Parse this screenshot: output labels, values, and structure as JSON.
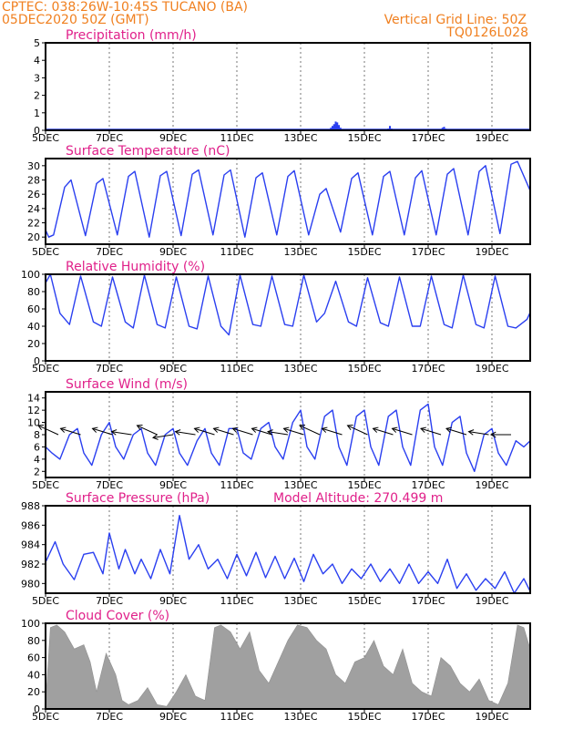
{
  "header": {
    "line1": "CPTEC:   038:26W-10:45S   TUCANO (BA)",
    "line2": "05DEC2020 50Z (GMT)",
    "right1": "Vertical Grid Line: 50Z",
    "right2": "TQ0126L028"
  },
  "colors": {
    "header": "#f08020",
    "title": "#e0208a",
    "line": "#2a3ff0",
    "cloud": "#a0a0a0",
    "arrow": "#000000"
  },
  "x_ticks": [
    "5DEC",
    "7DEC",
    "9DEC",
    "11DEC",
    "13DEC",
    "15DEC",
    "17DEC",
    "19DEC"
  ],
  "x_tick_days": [
    0,
    2,
    4,
    6,
    8,
    10,
    12,
    14
  ],
  "chart_data": [
    {
      "type": "bar",
      "title": "Precipitation (mm/h)",
      "ylim": [
        0,
        5
      ],
      "yticks": [
        0,
        1,
        2,
        3,
        4,
        5
      ],
      "x_range_days": [
        0,
        15.2
      ],
      "bars": [
        [
          8.95,
          0.15
        ],
        [
          9.0,
          0.25
        ],
        [
          9.05,
          0.35
        ],
        [
          9.1,
          0.5
        ],
        [
          9.15,
          0.45
        ],
        [
          9.2,
          0.3
        ],
        [
          9.25,
          0.15
        ],
        [
          10.75,
          0.1
        ],
        [
          10.8,
          0.25
        ],
        [
          10.85,
          0.1
        ],
        [
          12.45,
          0.15
        ],
        [
          12.5,
          0.2
        ],
        [
          12.55,
          0.1
        ]
      ],
      "baseline": 0.05
    },
    {
      "type": "line",
      "title": "Surface Temperature (nC)",
      "ylim": [
        19,
        31
      ],
      "yticks": [
        20,
        22,
        24,
        26,
        28,
        30
      ],
      "x_range_days": [
        0,
        15.2
      ],
      "x": [
        0,
        0.1,
        0.25,
        0.6,
        0.8,
        1.25,
        1.6,
        1.8,
        2.25,
        2.6,
        2.8,
        3.25,
        3.6,
        3.8,
        4.25,
        4.6,
        4.8,
        5.25,
        5.6,
        5.8,
        6.25,
        6.6,
        6.8,
        7.25,
        7.6,
        7.8,
        8.25,
        8.6,
        8.8,
        9.25,
        9.6,
        9.8,
        10.25,
        10.6,
        10.8,
        11.25,
        11.6,
        11.8,
        12.25,
        12.6,
        12.8,
        13.25,
        13.6,
        13.8,
        14.25,
        14.6,
        14.8,
        15.2
      ],
      "y": [
        21.0,
        20.0,
        20.3,
        27.0,
        28.0,
        20.2,
        27.5,
        28.2,
        20.3,
        28.5,
        29.2,
        20.0,
        28.6,
        29.2,
        20.2,
        28.8,
        29.4,
        20.3,
        28.7,
        29.4,
        20.0,
        28.3,
        29.0,
        20.3,
        28.5,
        29.3,
        20.3,
        26.0,
        26.8,
        20.7,
        28.2,
        29.0,
        20.3,
        28.5,
        29.2,
        20.3,
        28.3,
        29.3,
        20.3,
        28.8,
        29.6,
        20.3,
        29.2,
        30.0,
        20.5,
        30.2,
        30.6,
        26.5
      ]
    },
    {
      "type": "line",
      "title": "Relative Humidity (%)",
      "ylim": [
        0,
        100
      ],
      "yticks": [
        0,
        20,
        40,
        60,
        80,
        100
      ],
      "x_range_days": [
        0,
        15.2
      ],
      "x": [
        0,
        0.15,
        0.45,
        0.75,
        1.1,
        1.5,
        1.75,
        2.1,
        2.5,
        2.75,
        3.1,
        3.5,
        3.75,
        4.1,
        4.5,
        4.75,
        5.1,
        5.5,
        5.75,
        6.1,
        6.5,
        6.75,
        7.1,
        7.5,
        7.75,
        8.1,
        8.5,
        8.75,
        9.1,
        9.5,
        9.75,
        10.1,
        10.5,
        10.75,
        11.1,
        11.5,
        11.75,
        12.1,
        12.5,
        12.75,
        13.1,
        13.5,
        13.75,
        14.1,
        14.5,
        14.75,
        15.1,
        15.2
      ],
      "y": [
        90,
        100,
        55,
        42,
        98,
        45,
        40,
        97,
        45,
        38,
        99,
        42,
        38,
        97,
        40,
        37,
        98,
        40,
        30,
        99,
        42,
        40,
        98,
        42,
        40,
        99,
        45,
        55,
        92,
        45,
        40,
        96,
        44,
        40,
        97,
        40,
        40,
        98,
        42,
        38,
        99,
        42,
        38,
        98,
        40,
        38,
        48,
        56
      ]
    },
    {
      "type": "line",
      "title": "Surface Wind (m/s)",
      "ylim": [
        1,
        15
      ],
      "yticks": [
        2,
        4,
        6,
        8,
        10,
        12,
        14
      ],
      "x_range_days": [
        0,
        15.2
      ],
      "x": [
        0,
        0.2,
        0.45,
        0.75,
        1.0,
        1.2,
        1.45,
        1.75,
        2.0,
        2.2,
        2.45,
        2.75,
        3.0,
        3.2,
        3.45,
        3.75,
        4.0,
        4.2,
        4.45,
        4.75,
        5.0,
        5.2,
        5.45,
        5.75,
        6.0,
        6.2,
        6.45,
        6.75,
        7.0,
        7.2,
        7.45,
        7.75,
        8.0,
        8.2,
        8.45,
        8.75,
        9.0,
        9.2,
        9.45,
        9.75,
        10.0,
        10.2,
        10.45,
        10.75,
        11.0,
        11.2,
        11.45,
        11.75,
        12.0,
        12.2,
        12.45,
        12.75,
        13.0,
        13.2,
        13.45,
        13.75,
        14.0,
        14.2,
        14.45,
        14.75,
        15.0,
        15.2
      ],
      "y": [
        6,
        5,
        4,
        8,
        9,
        5,
        3,
        8,
        10,
        6,
        4,
        8,
        9,
        5,
        3,
        8,
        9,
        5,
        3,
        7,
        9,
        5,
        3,
        9,
        9,
        5,
        4,
        9,
        10,
        6,
        4,
        10,
        12,
        6,
        4,
        11,
        12,
        6,
        3,
        11,
        12,
        6,
        3,
        11,
        12,
        6,
        3,
        12,
        13,
        6,
        3,
        10,
        11,
        5,
        2,
        8,
        9,
        5,
        3,
        7,
        6,
        7
      ],
      "arrows": [
        [
          0.4,
          8,
          9.5
        ],
        [
          1.1,
          8,
          9
        ],
        [
          2.1,
          8,
          9
        ],
        [
          2.7,
          8,
          8.5
        ],
        [
          3.5,
          8,
          9.5
        ],
        [
          4.0,
          8,
          7.5
        ],
        [
          4.7,
          8,
          8.5
        ],
        [
          5.3,
          8,
          9
        ],
        [
          5.9,
          8,
          9
        ],
        [
          6.5,
          8,
          9
        ],
        [
          7.1,
          8,
          9
        ],
        [
          7.6,
          8,
          8.5
        ],
        [
          8.1,
          8,
          9
        ],
        [
          8.6,
          8,
          9.5
        ],
        [
          9.3,
          8,
          9
        ],
        [
          10.1,
          8,
          9.5
        ],
        [
          10.9,
          8,
          9
        ],
        [
          11.5,
          8,
          9
        ],
        [
          12.4,
          8,
          9
        ],
        [
          13.2,
          8,
          9
        ],
        [
          13.9,
          8,
          8.5
        ],
        [
          14.6,
          8,
          8
        ]
      ]
    },
    {
      "type": "line",
      "title": "Surface Pressure (hPa)",
      "annotation": "Model Altitude: 270.499 m",
      "ylim": [
        979,
        988
      ],
      "yticks": [
        980,
        982,
        984,
        986,
        988
      ],
      "x_range_days": [
        0,
        15.2
      ],
      "x": [
        0,
        0.3,
        0.55,
        0.9,
        1.2,
        1.5,
        1.8,
        2.0,
        2.3,
        2.5,
        2.8,
        3.0,
        3.3,
        3.6,
        3.9,
        4.2,
        4.5,
        4.8,
        5.1,
        5.4,
        5.7,
        6.0,
        6.3,
        6.6,
        6.9,
        7.2,
        7.5,
        7.8,
        8.1,
        8.4,
        8.7,
        9.0,
        9.3,
        9.6,
        9.9,
        10.2,
        10.5,
        10.8,
        11.1,
        11.4,
        11.7,
        12.0,
        12.3,
        12.6,
        12.9,
        13.2,
        13.5,
        13.8,
        14.1,
        14.4,
        14.7,
        15.0,
        15.2
      ],
      "y": [
        982.2,
        984.3,
        982.0,
        980.4,
        983.0,
        983.2,
        981.0,
        985.2,
        981.5,
        983.5,
        981.0,
        982.5,
        980.5,
        983.5,
        981.0,
        987.0,
        982.5,
        984.0,
        981.5,
        982.5,
        980.5,
        983.0,
        980.8,
        983.2,
        980.6,
        982.8,
        980.5,
        982.6,
        980.2,
        983.0,
        981.0,
        982.0,
        980.0,
        981.5,
        980.5,
        982.0,
        980.2,
        981.5,
        980.0,
        982.0,
        980.0,
        981.2,
        980.0,
        982.5,
        979.5,
        981.0,
        979.3,
        980.5,
        979.5,
        981.2,
        979.0,
        980.5,
        979.2
      ]
    },
    {
      "type": "area",
      "title": "Cloud Cover (%)",
      "ylim": [
        0,
        100
      ],
      "yticks": [
        0,
        20,
        40,
        60,
        80,
        100
      ],
      "x_range_days": [
        0,
        15.2
      ],
      "x": [
        0,
        0.15,
        0.35,
        0.6,
        0.9,
        1.2,
        1.4,
        1.6,
        1.9,
        2.2,
        2.4,
        2.6,
        2.9,
        3.2,
        3.5,
        3.8,
        4.1,
        4.4,
        4.7,
        5.0,
        5.3,
        5.5,
        5.8,
        6.1,
        6.4,
        6.7,
        7.0,
        7.3,
        7.6,
        7.9,
        8.2,
        8.5,
        8.8,
        9.1,
        9.4,
        9.7,
        10.0,
        10.3,
        10.6,
        10.9,
        11.2,
        11.5,
        11.8,
        12.1,
        12.4,
        12.7,
        13.0,
        13.3,
        13.6,
        13.9,
        14.2,
        14.5,
        14.8,
        15.0,
        15.2
      ],
      "y": [
        5,
        95,
        98,
        90,
        70,
        75,
        55,
        20,
        65,
        40,
        10,
        5,
        10,
        25,
        5,
        3,
        20,
        40,
        15,
        10,
        95,
        98,
        90,
        70,
        90,
        45,
        30,
        55,
        80,
        98,
        95,
        80,
        70,
        40,
        30,
        55,
        60,
        80,
        50,
        40,
        70,
        30,
        20,
        15,
        60,
        50,
        30,
        20,
        35,
        10,
        5,
        30,
        98,
        95,
        70
      ]
    }
  ]
}
